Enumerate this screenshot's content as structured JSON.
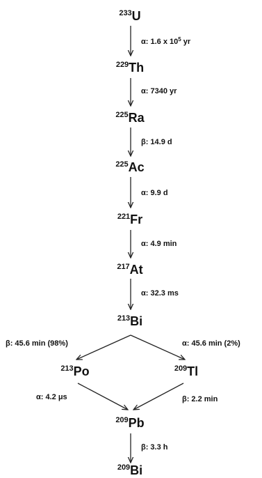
{
  "nuclides": {
    "u233": {
      "mass": "233",
      "symbol": "U"
    },
    "th229": {
      "mass": "229",
      "symbol": "Th"
    },
    "ra225": {
      "mass": "225",
      "symbol": "Ra"
    },
    "ac225": {
      "mass": "225",
      "symbol": "Ac"
    },
    "fr221": {
      "mass": "221",
      "symbol": "Fr"
    },
    "at217": {
      "mass": "217",
      "symbol": "At"
    },
    "bi213": {
      "mass": "213",
      "symbol": "Bi"
    },
    "po213": {
      "mass": "213",
      "symbol": "Po"
    },
    "tl209": {
      "mass": "209",
      "symbol": "Tl"
    },
    "pb209": {
      "mass": "209",
      "symbol": "Pb"
    },
    "bi209": {
      "mass": "209",
      "symbol": "Bi"
    }
  },
  "decays": {
    "u233_th229": {
      "text": "α: 1.6 x 10",
      "exp": "5",
      "unit": " yr"
    },
    "th229_ra225": {
      "text": "α: 7340 yr"
    },
    "ra225_ac225": {
      "text": "β: 14.9 d"
    },
    "ac225_fr221": {
      "text": "α: 9.9 d"
    },
    "fr221_at217": {
      "text": "α: 4.9 min"
    },
    "at217_bi213": {
      "text": "α: 32.3 ms"
    },
    "bi213_po213": {
      "text": "β: 45.6 min (98%)"
    },
    "bi213_tl209": {
      "text": "α: 45.6 min (2%)"
    },
    "po213_pb209": {
      "text": "α: 4.2 μs"
    },
    "tl209_pb209": {
      "text": "β: 2.2 min"
    },
    "pb209_bi209": {
      "text": "β: 3.3 h"
    }
  }
}
